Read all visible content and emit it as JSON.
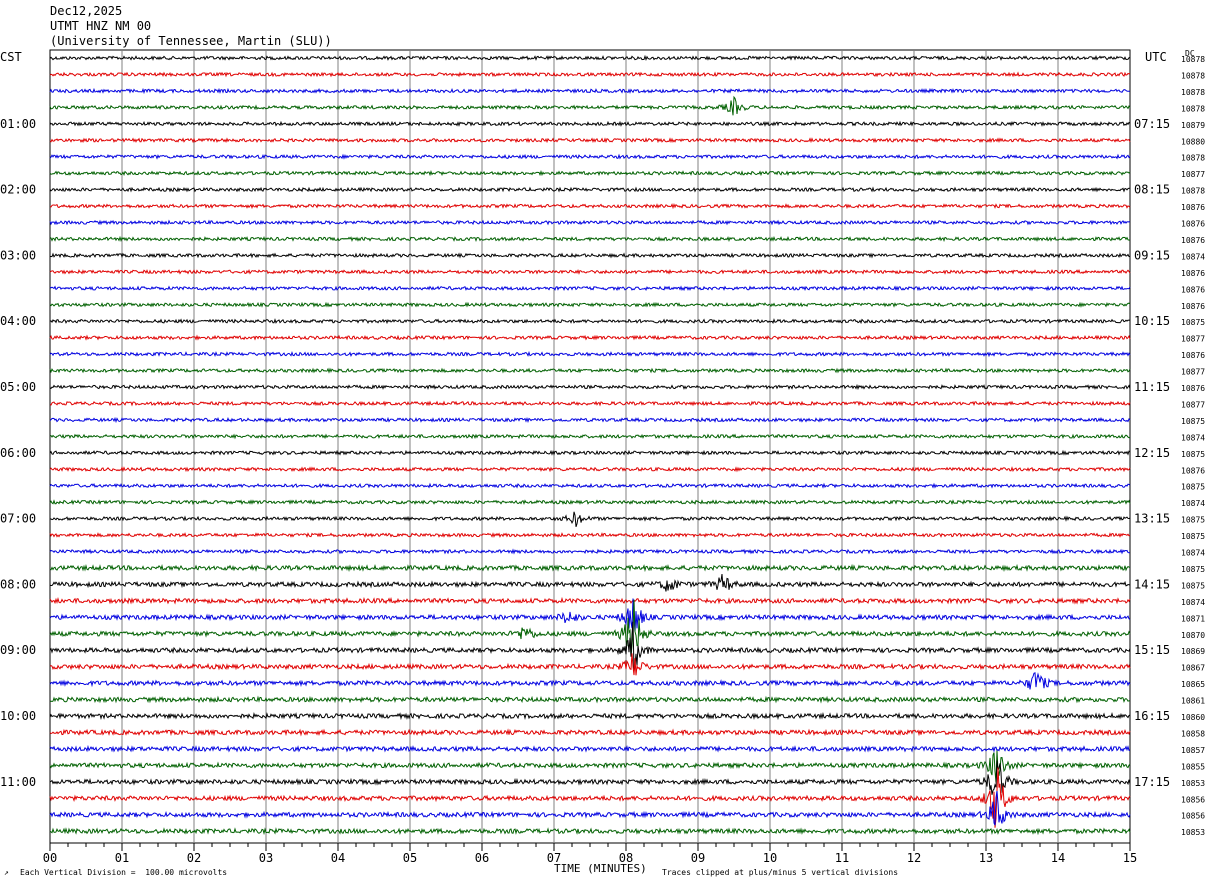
{
  "header": {
    "date": "Dec12,2025",
    "station": "UTMT HNZ NM 00",
    "network": "(University of Tennessee, Martin (SLU))"
  },
  "left_tz": "CST",
  "right_tz": "UTC",
  "dc_label": "DC",
  "footer": {
    "scale_note": "Each Vertical Division =  100.00 microvolts",
    "xlabel": "TIME (MINUTES)",
    "clip_note": "Traces clipped at plus/minus 5 vertical divisions"
  },
  "colors": {
    "trace_cycle": [
      "#000000",
      "#e00000",
      "#0000e0",
      "#006000"
    ],
    "grid": "#808080"
  },
  "chart_data": {
    "type": "line",
    "title": "UTMT HNZ NM 00",
    "xlabel": "TIME (MINUTES)",
    "xlim": [
      0,
      15
    ],
    "x_ticks": [
      "00",
      "01",
      "02",
      "03",
      "04",
      "05",
      "06",
      "07",
      "08",
      "09",
      "10",
      "11",
      "12",
      "13",
      "14",
      "15"
    ],
    "left_hour_labels": [
      "01:00",
      "02:00",
      "03:00",
      "04:00",
      "05:00",
      "06:00",
      "07:00",
      "08:00",
      "09:00",
      "10:00",
      "11:00"
    ],
    "right_hour_labels": [
      "07:15",
      "08:15",
      "09:15",
      "10:15",
      "11:15",
      "12:15",
      "13:15",
      "14:15",
      "15:15",
      "16:15",
      "17:15"
    ],
    "dc_values": [
      "10878",
      "10878",
      "10878",
      "10878",
      "10879",
      "10880",
      "10878",
      "10877",
      "10878",
      "10876",
      "10876",
      "10876",
      "10874",
      "10876",
      "10876",
      "10876",
      "10875",
      "10877",
      "10876",
      "10877",
      "10876",
      "10877",
      "10875",
      "10874",
      "10875",
      "10876",
      "10875",
      "10874",
      "10875",
      "10875",
      "10874",
      "10875",
      "10875",
      "10874",
      "10871",
      "10870",
      "10869",
      "10867",
      "10865",
      "10861",
      "10860",
      "10858",
      "10857",
      "10855",
      "10853",
      "10856",
      "10856",
      "10853"
    ],
    "events": [
      {
        "trace": 3,
        "minute": 9.5,
        "amplitude": 1.2
      },
      {
        "trace": 28,
        "minute": 7.3,
        "amplitude": 1.0
      },
      {
        "trace": 32,
        "minute": 8.6,
        "amplitude": 1.2
      },
      {
        "trace": 32,
        "minute": 9.35,
        "amplitude": 1.4
      },
      {
        "trace": 34,
        "minute": 8.1,
        "amplitude": 3.0
      },
      {
        "trace": 34,
        "minute": 7.2,
        "amplitude": 1.0
      },
      {
        "trace": 35,
        "minute": 8.1,
        "amplitude": 5.0
      },
      {
        "trace": 35,
        "minute": 6.6,
        "amplitude": 1.2
      },
      {
        "trace": 36,
        "minute": 8.1,
        "amplitude": 3.5
      },
      {
        "trace": 37,
        "minute": 8.1,
        "amplitude": 2.0
      },
      {
        "trace": 38,
        "minute": 13.7,
        "amplitude": 2.0
      },
      {
        "trace": 43,
        "minute": 13.15,
        "amplitude": 3.0
      },
      {
        "trace": 44,
        "minute": 13.15,
        "amplitude": 4.0
      },
      {
        "trace": 45,
        "minute": 13.15,
        "amplitude": 5.0
      },
      {
        "trace": 46,
        "minute": 13.15,
        "amplitude": 3.0
      }
    ]
  }
}
